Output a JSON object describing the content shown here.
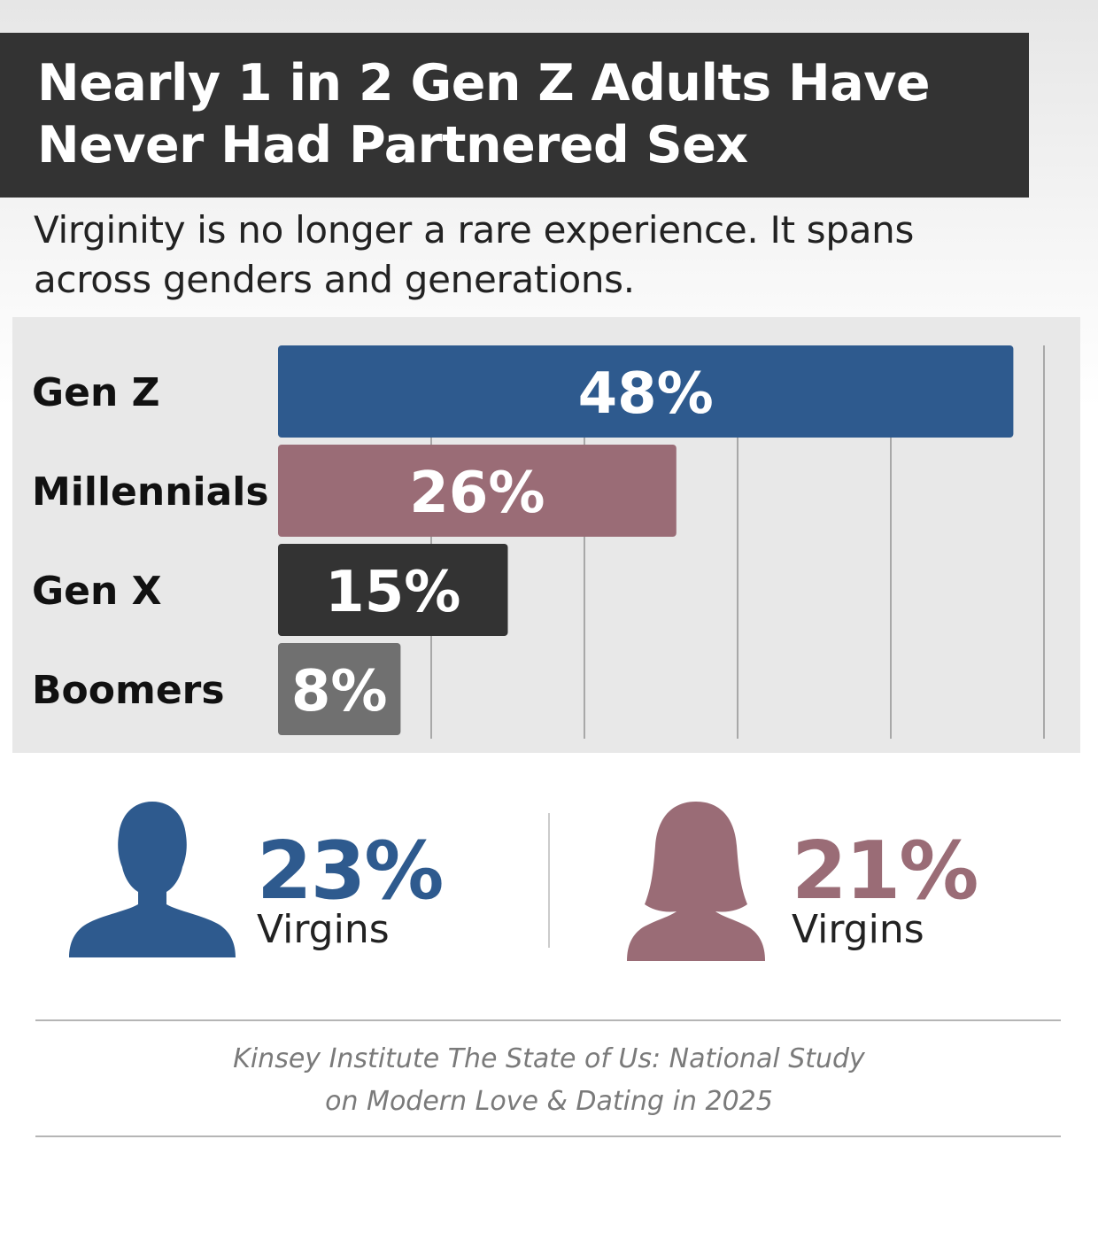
{
  "header": {
    "title_line1": "Nearly 1 in 2 Gen Z Adults Have",
    "title_line2": "Never Had Partnered Sex",
    "subtitle_line1": "Virginity is no longer a rare experience. It spans",
    "subtitle_line2": "across genders and generations."
  },
  "chart_data": {
    "type": "bar",
    "orientation": "horizontal",
    "categories": [
      "Gen Z",
      "Millennials",
      "Gen X",
      "Boomers"
    ],
    "values": [
      48,
      26,
      15,
      8
    ],
    "value_labels": [
      "48%",
      "26%",
      "15%",
      "8%"
    ],
    "colors": [
      "#2e5a8e",
      "#9a6c76",
      "#333333",
      "#707070"
    ],
    "xlim": [
      0,
      50
    ],
    "grid": true
  },
  "stats": {
    "men": {
      "value": "23%",
      "caption": "Virgins",
      "color": "#2e5a8e",
      "icon": "male-silhouette-icon"
    },
    "women": {
      "value": "21%",
      "caption": "Virgins",
      "color": "#9a6c76",
      "icon": "female-silhouette-icon"
    }
  },
  "source": {
    "line1": "Kinsey Institute The State of Us: National Study",
    "line2": "on Modern Love & Dating in 2025"
  }
}
